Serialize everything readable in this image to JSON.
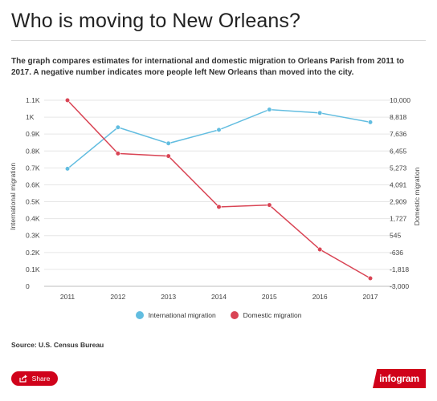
{
  "header": {
    "title": "Who is moving to New Orleans?",
    "description": "The graph compares estimates for international and domestic migration to Orleans Parish from 2011 to 2017. A negative number indicates more people left New Orleans than moved into the city."
  },
  "chart_data": {
    "type": "line",
    "x": [
      "2011",
      "2012",
      "2013",
      "2014",
      "2015",
      "2016",
      "2017"
    ],
    "y_left": {
      "label": "International migration",
      "ticks": [
        "1.1K",
        "1K",
        "0.9K",
        "0.8K",
        "0.7K",
        "0.6K",
        "0.5K",
        "0.4K",
        "0.3K",
        "0.2K",
        "0.1K",
        "0"
      ],
      "range": [
        0,
        1100
      ]
    },
    "y_right": {
      "label": "Domestic migration",
      "ticks": [
        "10,000",
        "8,818",
        "7,636",
        "6,455",
        "5,273",
        "4,091",
        "2,909",
        "1,727",
        "545",
        "-636",
        "-1,818",
        "-3,000"
      ],
      "range": [
        -3000,
        10000
      ]
    },
    "series": [
      {
        "name": "International migration",
        "axis": "left",
        "color": "#62bde0",
        "values": [
          695,
          940,
          845,
          925,
          1045,
          1025,
          970
        ]
      },
      {
        "name": "Domestic migration",
        "axis": "right",
        "color": "#d94454",
        "values": [
          10000,
          6280,
          6100,
          2550,
          2680,
          -425,
          -2440
        ]
      }
    ],
    "legend_position": "bottom"
  },
  "footer": {
    "source": "Source: U.S. Census Bureau",
    "share_label": "Share",
    "brand": "infogram"
  }
}
